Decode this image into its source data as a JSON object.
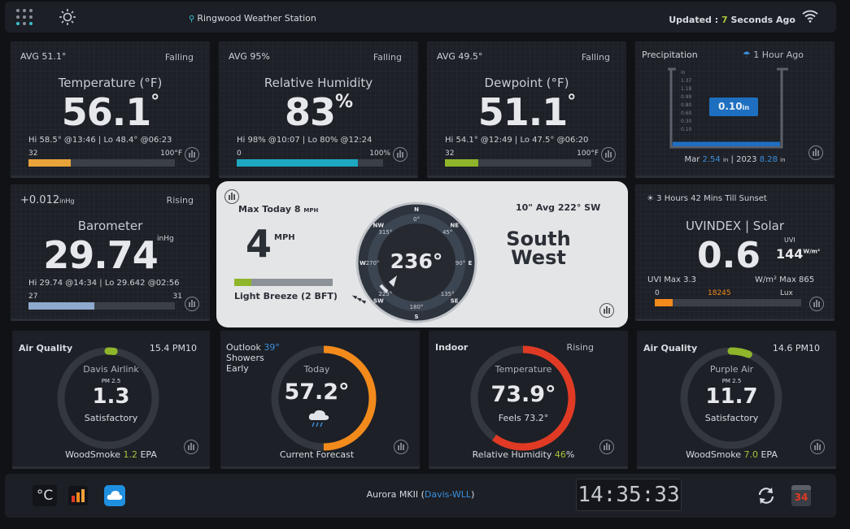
{
  "header": {
    "station_name": "Ringwood Weather Station",
    "updated_prefix": "Updated :",
    "updated_value": "7",
    "updated_suffix": "Seconds Ago"
  },
  "temperature": {
    "avg": "AVG 51.1°",
    "trend": "Falling",
    "title": "Temperature (°F)",
    "value": "56.1",
    "unit": "°",
    "hilo": "Hi 58.5° @13:46 | Lo 48.4° @06:23",
    "scale_min": "32",
    "scale_max": "100°F",
    "bar_fraction": 0.29,
    "bar_color": "#e8a33a"
  },
  "humidity": {
    "avg": "AVG 95%",
    "trend": "Falling",
    "title": "Relative Humidity",
    "value": "83",
    "unit": "%",
    "hilo": "Hi 98% @10:07 | Lo 80% @12:24",
    "scale_min": "0",
    "scale_max": "100%",
    "bar_fraction": 0.83,
    "bar_color": "#1ea8c2"
  },
  "dewpoint": {
    "avg": "AVG 49.5°",
    "trend": "Falling",
    "title": "Dewpoint (°F)",
    "value": "51.1",
    "unit": "°",
    "hilo": "Hi 54.1° @12:49 | Lo 47.5° @06:20",
    "scale_min": "32",
    "scale_max": "100°F",
    "bar_fraction": 0.23,
    "bar_color": "#8fb52a"
  },
  "precipitation": {
    "title": "Precipitation",
    "ago": "1 Hour Ago",
    "amount": "0.10",
    "amount_unit": "in",
    "ticks": [
      "in",
      "1.37",
      "1.18",
      "0.99",
      "0.80",
      "0.60",
      "0.30",
      "0.10"
    ],
    "mar_label": "Mar",
    "mar_value": "2.54",
    "year_label": "2023",
    "year_value": "8.28",
    "unit": "in",
    "fill_fraction": 0.06
  },
  "barometer": {
    "change": "+0.012",
    "change_unit": "inHg",
    "trend": "Rising",
    "title": "Barometer",
    "value": "29.74",
    "unit": "inHg",
    "hilo": "Hi 29.74 @14:34 | Lo 29.642 @02:56",
    "scale_min": "27",
    "scale_max": "31",
    "bar_fraction": 0.45,
    "bar_color": "#8eaacc"
  },
  "wind": {
    "max_today_label": "Max Today 8",
    "max_today_unit": "MPH",
    "speed": "4",
    "speed_unit": "MPH",
    "beaufort": "Light Breeze (2 BFT)",
    "beaufort_fraction": 0.17,
    "direction": "236°",
    "avg": "10\" Avg 222° SW",
    "dir_word1": "South",
    "dir_word2": "West",
    "compass_points": [
      "N",
      "NE",
      "E",
      "SE",
      "S",
      "SW",
      "W",
      "NW"
    ],
    "degree_marks": [
      "0°",
      "45°",
      "90°",
      "135°",
      "180°",
      "225°",
      "270°",
      "315°"
    ]
  },
  "uv": {
    "sunset": "3 Hours 42 Mins Till Sunset",
    "title": "UVINDEX | Solar",
    "value": "0.6",
    "uvi_label": "UVI",
    "solar_value": "144",
    "solar_unit": "W/m²",
    "uvi_max": "UVI Max 3.3",
    "solar_max": "W/m² Max 865",
    "scale_min": "0",
    "lux": "18245",
    "lux_label": "Lux",
    "bar_fraction": 0.12
  },
  "air_quality_davis": {
    "title": "Air Quality",
    "pm10": "15.4 PM10",
    "source": "Davis Airlink",
    "pm_label": "PM 2.5",
    "value": "1.3",
    "status": "Satisfactory",
    "smoke_label": "WoodSmoke",
    "smoke_value": "1.2",
    "smoke_unit": "EPA",
    "arc_fraction": 0.02
  },
  "forecast": {
    "outlook_label": "Outlook",
    "outlook_temp": "39°",
    "outlook_text1": "Showers",
    "outlook_text2": "Early",
    "day": "Today",
    "temp": "57.2°",
    "caption": "Current Forecast",
    "arc_fraction": 0.5
  },
  "indoor": {
    "title": "Indoor",
    "trend": "Rising",
    "label": "Temperature",
    "value": "73.9°",
    "feels": "Feels 73.2°",
    "humidity_label": "Relative Humidity",
    "humidity_value": "46",
    "humidity_unit": "%",
    "arc_fraction": 0.6
  },
  "air_quality_purple": {
    "title": "Air Quality",
    "pm10": "14.6 PM10",
    "source": "Purple Air",
    "pm_label": "PM 2.5",
    "value": "11.7",
    "status": "Satisfactory",
    "smoke_label": "WoodSmoke",
    "smoke_value": "7.0",
    "smoke_unit": "EPA",
    "arc_fraction": 0.06
  },
  "footer": {
    "unit_toggle": "°C",
    "station_model": "Aurora MKII (",
    "station_link": "Davis-WLL",
    "station_close": ")",
    "clock": "14:35:33",
    "calendar_day": "34"
  },
  "colors": {
    "accent_green": "#a4c639",
    "accent_blue": "#3a8fdf",
    "orange": "#f28a1c",
    "red": "#e03a25"
  }
}
